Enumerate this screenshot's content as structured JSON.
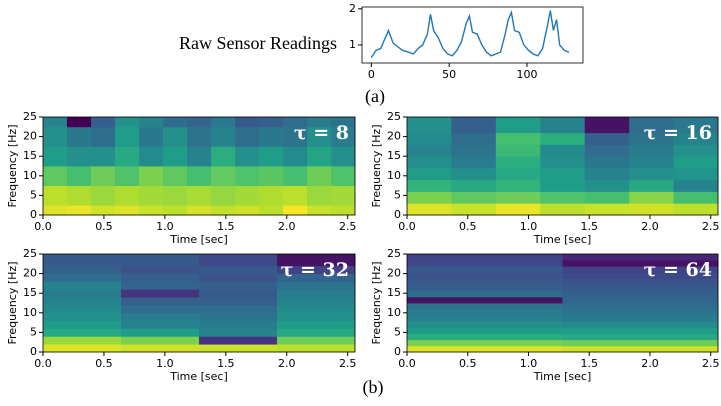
{
  "panel_labels": [
    "(a)",
    "(b)"
  ],
  "chart_data": [
    {
      "type": "line",
      "title": "Raw Sensor Readings",
      "color": "#1f77b4",
      "x": [
        0,
        3,
        6,
        9,
        11,
        14,
        17,
        20,
        24,
        27,
        30,
        33,
        36,
        38,
        40,
        43,
        46,
        49,
        52,
        55,
        58,
        61,
        63,
        65,
        68,
        71,
        74,
        77,
        80,
        83,
        86,
        88,
        90,
        92,
        95,
        98,
        101,
        104,
        107,
        110,
        113,
        115,
        117,
        119,
        121,
        124,
        127
      ],
      "values": [
        0.65,
        0.85,
        0.9,
        1.2,
        1.4,
        1.05,
        0.95,
        0.85,
        0.8,
        0.75,
        0.9,
        1.0,
        1.3,
        1.85,
        1.4,
        1.2,
        0.9,
        0.75,
        0.7,
        0.85,
        1.1,
        1.6,
        1.8,
        1.35,
        1.3,
        1.0,
        0.8,
        0.7,
        0.75,
        0.8,
        1.3,
        1.7,
        1.9,
        1.4,
        1.35,
        1.0,
        0.85,
        0.75,
        0.7,
        0.9,
        1.5,
        1.95,
        1.4,
        1.7,
        1.0,
        0.85,
        0.8
      ],
      "xlim": [
        -6,
        136
      ],
      "ylim": [
        0.5,
        2.05
      ],
      "xticks": [
        0,
        50,
        100
      ],
      "yticks": [
        1,
        2
      ]
    },
    {
      "type": "heatmap",
      "annotation": "τ = 8",
      "xlabel": "Time [sec]",
      "ylabel": "Frequency [Hz]",
      "colormap": "viridis",
      "xlim": [
        0,
        2.56
      ],
      "ylim": [
        0,
        25
      ],
      "xticks": [
        {
          "value": 0,
          "label": "0.0"
        },
        0.5,
        {
          "value": 1,
          "label": "1.0"
        },
        1.5,
        {
          "value": 2,
          "label": "2.0"
        },
        2.5
      ],
      "yticks": [
        0,
        5,
        10,
        15,
        20,
        25
      ],
      "x_edges": [
        0,
        0.197,
        0.394,
        0.591,
        0.788,
        0.985,
        1.182,
        1.379,
        1.576,
        1.773,
        1.97,
        2.167,
        2.364,
        2.56
      ],
      "y_edges": [
        0,
        2.5,
        7.5,
        12.5,
        17.5,
        22.5,
        25
      ],
      "z": [
        [
          0.95,
          0.9,
          0.75,
          0.55,
          0.5,
          0.45
        ],
        [
          0.97,
          0.88,
          0.7,
          0.5,
          0.4,
          0.0
        ],
        [
          0.93,
          0.85,
          0.78,
          0.5,
          0.35,
          0.3
        ],
        [
          0.95,
          0.88,
          0.72,
          0.6,
          0.55,
          0.5
        ],
        [
          0.92,
          0.86,
          0.8,
          0.48,
          0.4,
          0.45
        ],
        [
          0.9,
          0.85,
          0.75,
          0.55,
          0.5,
          0.35
        ],
        [
          0.94,
          0.87,
          0.7,
          0.45,
          0.38,
          0.32
        ],
        [
          0.91,
          0.84,
          0.76,
          0.62,
          0.45,
          0.4
        ],
        [
          0.93,
          0.86,
          0.72,
          0.5,
          0.35,
          0.28
        ],
        [
          0.9,
          0.88,
          0.74,
          0.55,
          0.4,
          0.3
        ],
        [
          0.99,
          0.9,
          0.7,
          0.48,
          0.38,
          0.35
        ],
        [
          0.92,
          0.85,
          0.78,
          0.58,
          0.5,
          0.42
        ],
        [
          0.9,
          0.86,
          0.72,
          0.5,
          0.42,
          0.38
        ]
      ]
    },
    {
      "type": "heatmap",
      "annotation": "τ = 16",
      "xlabel": "Time [sec]",
      "ylabel": "Frequency [Hz]",
      "colormap": "viridis",
      "xlim": [
        0,
        2.56
      ],
      "ylim": [
        0,
        25
      ],
      "xticks": [
        {
          "value": 0,
          "label": "0.0"
        },
        0.5,
        {
          "value": 1,
          "label": "1.0"
        },
        1.5,
        {
          "value": 2,
          "label": "2.0"
        },
        2.5
      ],
      "yticks": [
        0,
        5,
        10,
        15,
        20,
        25
      ],
      "x_edges": [
        0,
        0.366,
        0.731,
        1.097,
        1.463,
        1.829,
        2.194,
        2.56
      ],
      "y_edges": [
        0,
        3,
        6,
        9,
        12,
        15,
        18,
        21,
        25
      ],
      "z": [
        [
          0.95,
          0.8,
          0.65,
          0.55,
          0.5,
          0.45,
          0.48,
          0.5
        ],
        [
          0.92,
          0.75,
          0.6,
          0.5,
          0.42,
          0.38,
          0.35,
          0.3
        ],
        [
          0.97,
          0.78,
          0.65,
          0.6,
          0.62,
          0.68,
          0.7,
          0.55
        ],
        [
          0.9,
          0.72,
          0.55,
          0.55,
          0.5,
          0.48,
          0.62,
          0.45
        ],
        [
          0.92,
          0.7,
          0.5,
          0.45,
          0.4,
          0.35,
          0.3,
          0.05
        ],
        [
          0.93,
          0.82,
          0.6,
          0.5,
          0.45,
          0.42,
          0.38,
          0.35
        ],
        [
          0.9,
          0.7,
          0.45,
          0.52,
          0.55,
          0.5,
          0.45,
          0.4
        ]
      ]
    },
    {
      "type": "heatmap",
      "annotation": "τ = 32",
      "xlabel": "Time [sec]",
      "ylabel": "Frequency [Hz]",
      "colormap": "viridis",
      "xlim": [
        0,
        2.56
      ],
      "ylim": [
        0,
        25
      ],
      "xticks": [
        {
          "value": 0,
          "label": "0.0"
        },
        0.5,
        {
          "value": 1,
          "label": "1.0"
        },
        1.5,
        {
          "value": 2,
          "label": "2.0"
        },
        2.5
      ],
      "yticks": [
        0,
        5,
        10,
        15,
        20,
        25
      ],
      "x_edges": [
        0,
        0.64,
        1.28,
        1.92,
        2.56
      ],
      "y_edges": [
        0,
        2,
        4,
        6,
        8,
        10,
        12,
        14,
        16,
        18,
        20,
        22,
        25
      ],
      "z": [
        [
          0.95,
          0.85,
          0.6,
          0.55,
          0.5,
          0.48,
          0.45,
          0.42,
          0.45,
          0.35,
          0.3,
          0.28
        ],
        [
          0.93,
          0.8,
          0.55,
          0.45,
          0.42,
          0.35,
          0.3,
          0.15,
          0.32,
          0.3,
          0.25,
          0.28
        ],
        [
          0.92,
          0.15,
          0.45,
          0.42,
          0.38,
          0.35,
          0.3,
          0.28,
          0.3,
          0.25,
          0.28,
          0.22
        ],
        [
          0.9,
          0.78,
          0.6,
          0.55,
          0.5,
          0.48,
          0.45,
          0.42,
          0.38,
          0.32,
          0.2,
          0.05
        ]
      ]
    },
    {
      "type": "heatmap",
      "annotation": "τ = 64",
      "xlabel": "Time [sec]",
      "ylabel": "Frequency [Hz]",
      "colormap": "viridis",
      "xlim": [
        0,
        2.56
      ],
      "ylim": [
        0,
        25
      ],
      "xticks": [
        {
          "value": 0,
          "label": "0.0"
        },
        0.5,
        {
          "value": 1,
          "label": "1.0"
        },
        1.5,
        {
          "value": 2,
          "label": "2.0"
        },
        2.5
      ],
      "yticks": [
        0,
        5,
        10,
        15,
        20,
        25
      ],
      "x_edges": [
        0,
        1.28,
        2.56
      ],
      "y_edges": [
        0,
        1.5625,
        3.125,
        4.6875,
        6.25,
        7.8125,
        9.375,
        10.9375,
        12.5,
        14.0625,
        15.625,
        17.1875,
        18.75,
        20.3125,
        21.875,
        23.4375,
        25
      ],
      "z": [
        [
          0.95,
          0.8,
          0.62,
          0.55,
          0.5,
          0.45,
          0.42,
          0.38,
          0.05,
          0.35,
          0.3,
          0.28,
          0.25,
          0.28,
          0.22,
          0.2
        ],
        [
          0.93,
          0.78,
          0.6,
          0.55,
          0.48,
          0.42,
          0.38,
          0.35,
          0.33,
          0.3,
          0.28,
          0.25,
          0.22,
          0.2,
          0.05,
          0.1
        ]
      ]
    }
  ]
}
